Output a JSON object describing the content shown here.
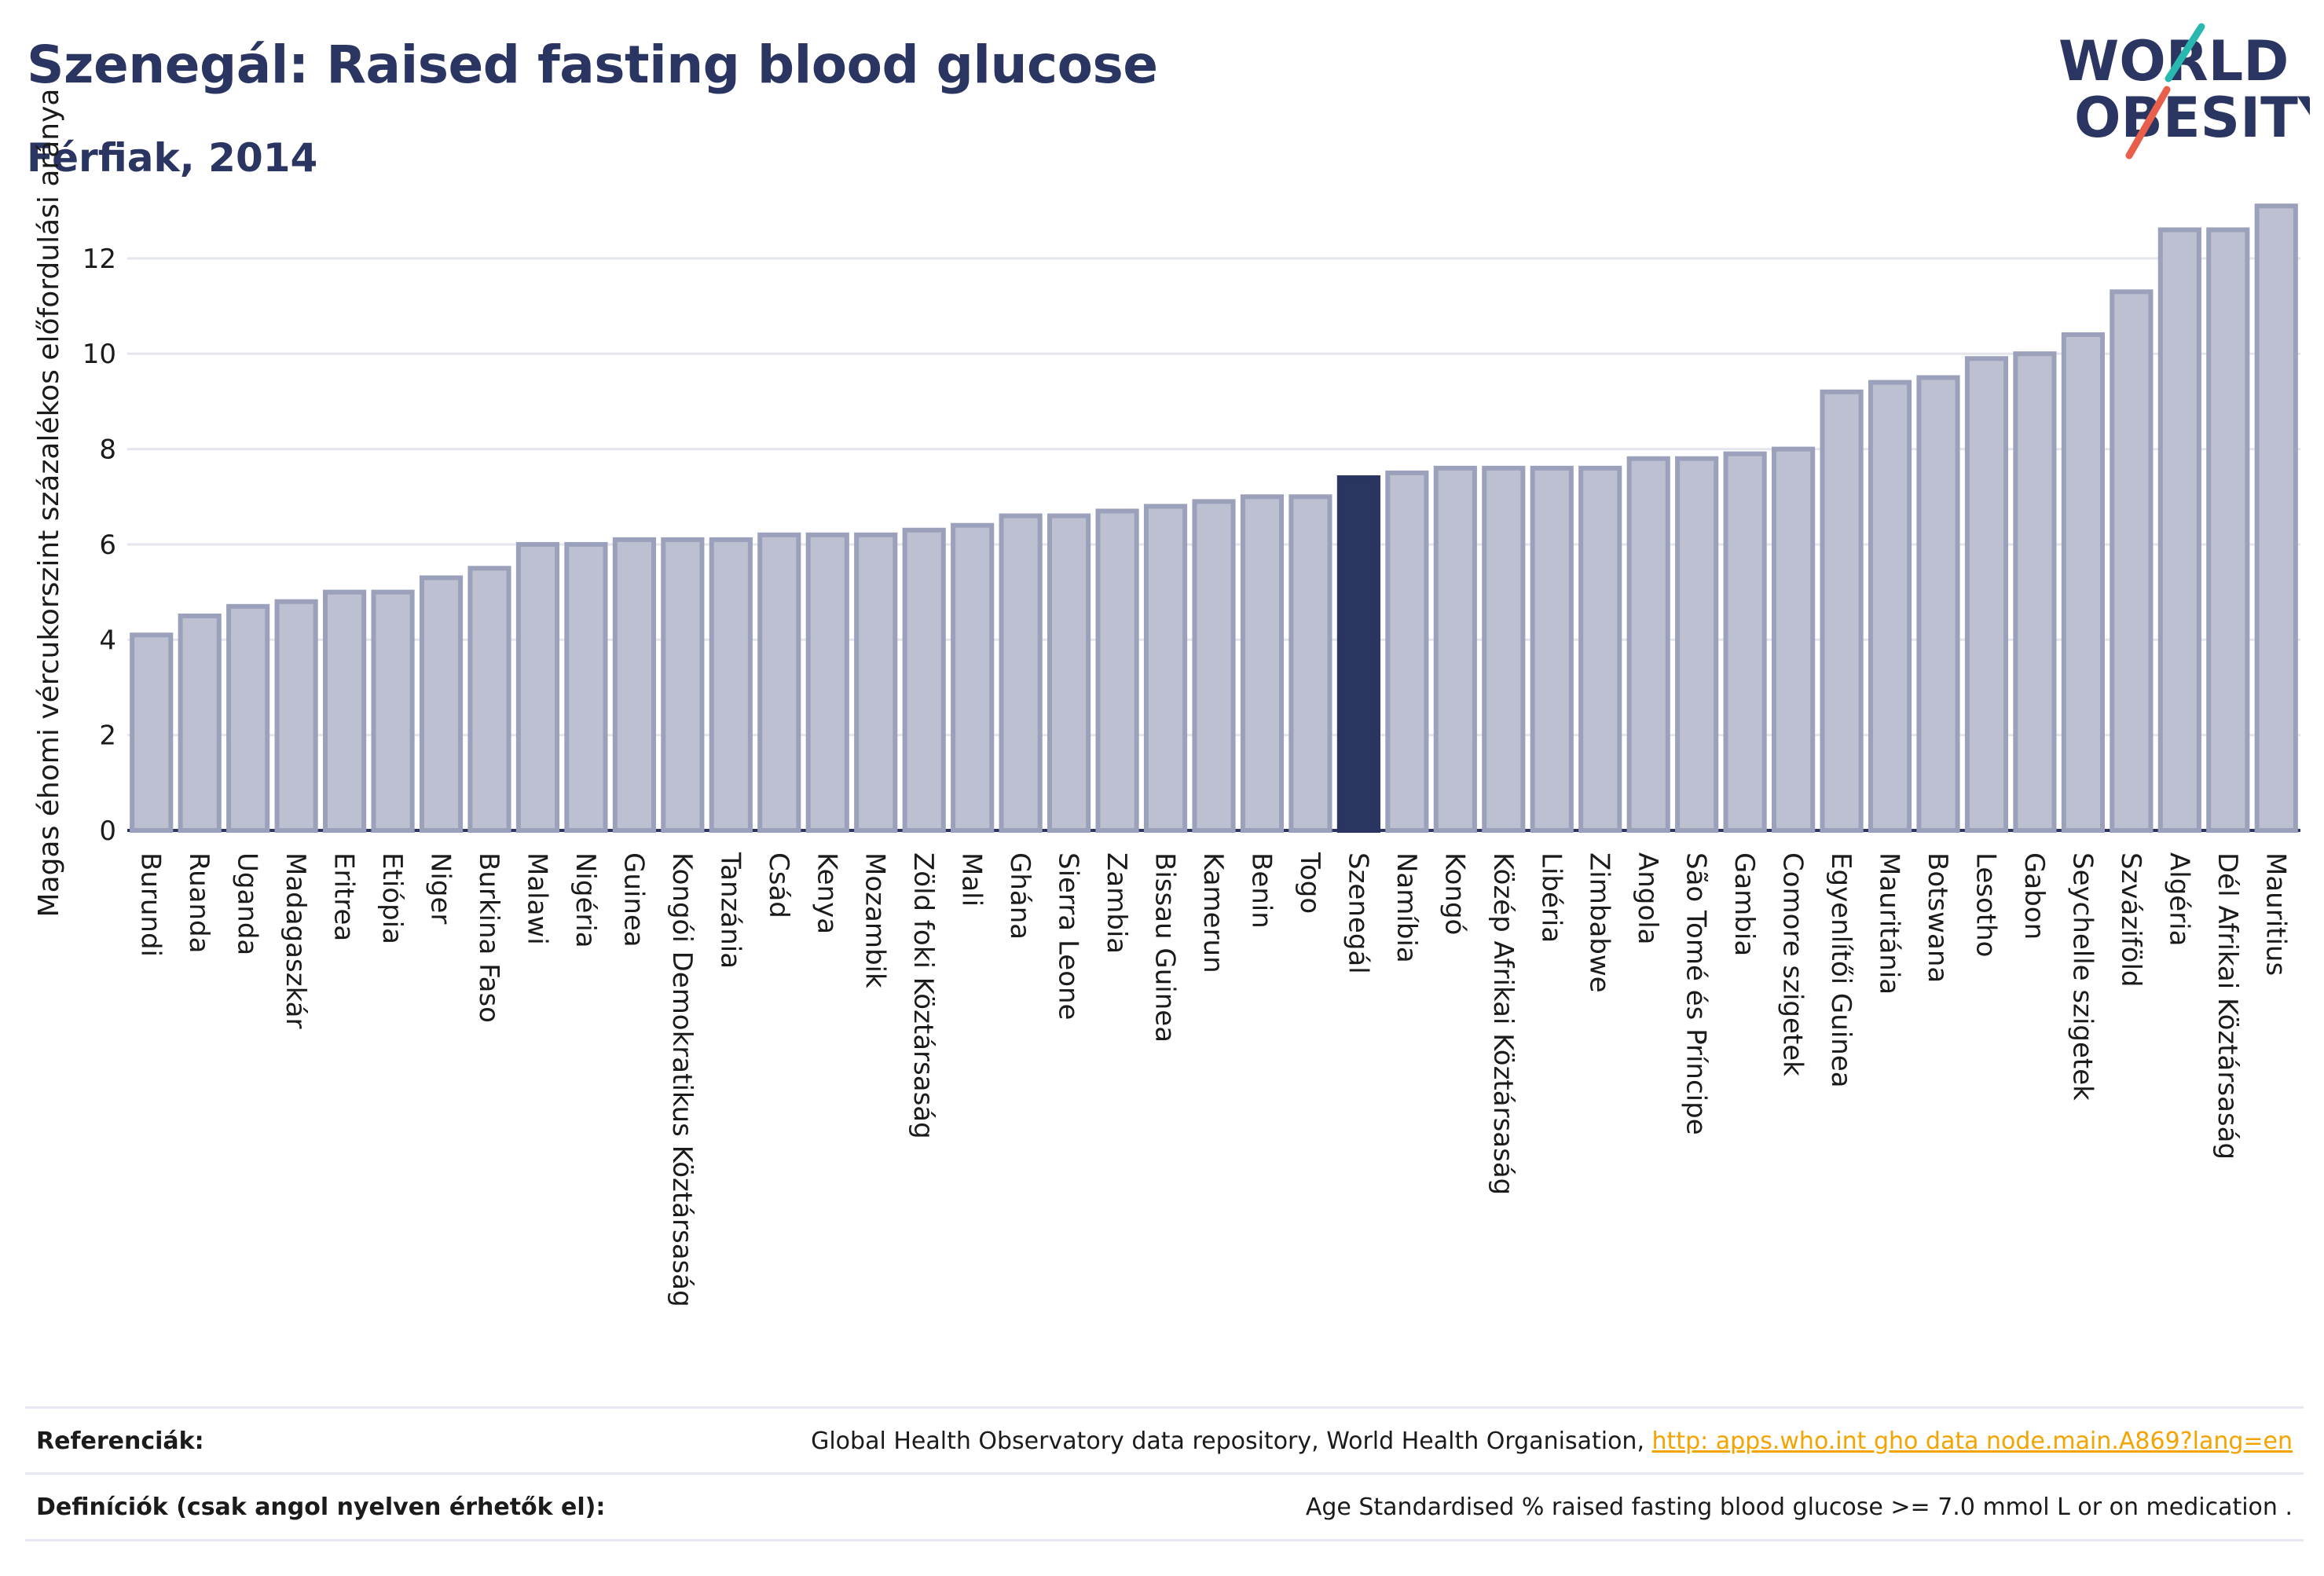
{
  "header": {
    "title": "Szenegál: Raised fasting blood glucose",
    "subtitle": "Férfiak, 2014"
  },
  "logo": {
    "line1": "WORLD",
    "line2": "OBESITY"
  },
  "colors": {
    "bar": "#bcc0d0",
    "bar_edge": "#9ba1bb",
    "highlight": "#2a3561",
    "title": "#2a3561",
    "link": "#f5a300",
    "logo_teal": "#29b8b0",
    "logo_red": "#e8604c"
  },
  "references": {
    "label": "Referenciák:",
    "text": "Global Health Observatory data repository, World Health Organisation,",
    "link": "http:  apps.who.int gho data node.main.A869?lang=en"
  },
  "definitions": {
    "label": "Definíciók (csak angol nyelven érhetők el):",
    "text": "Age Standardised % raised fasting blood glucose  >= 7.0 mmol L or on medication ."
  },
  "chart_data": {
    "type": "bar",
    "title": "Szenegál: Raised fasting blood glucose",
    "subtitle": "Férfiak, 2014",
    "xlabel": "",
    "ylabel": "Magas éhomi vércukorszint százalékos előfordulási aránya",
    "ylim": [
      0,
      13.3
    ],
    "yticks": [
      0,
      2,
      4,
      6,
      8,
      10,
      12
    ],
    "grid": true,
    "highlight": "Szenegál",
    "categories": [
      "Burundi",
      "Ruanda",
      "Uganda",
      "Madagaszkár",
      "Eritrea",
      "Etiópia",
      "Niger",
      "Burkina Faso",
      "Malawi",
      "Nigéria",
      "Guinea",
      "Kongói Demokratikus Köztársaság",
      "Tanzánia",
      "Csád",
      "Kenya",
      "Mozambik",
      "Zöld foki Köztársaság",
      "Mali",
      "Ghána",
      "Sierra Leone",
      "Zambia",
      "Bissau Guinea",
      "Kamerun",
      "Benin",
      "Togo",
      "Szenegál",
      "Namíbia",
      "Kongó",
      "Közép Afrikai Köztársaság",
      "Libéria",
      "Zimbabwe",
      "Angola",
      "São Tomé és Príncipe",
      "Gambia",
      "Comore  szigetek",
      "Egyenlítői Guinea",
      "Mauritánia",
      "Botswana",
      "Lesotho",
      "Gabon",
      "Seychelle  szigetek",
      "Szváziföld",
      "Algéria",
      "Dél Afrikai Köztársaság",
      "Mauritius"
    ],
    "values": [
      4.1,
      4.5,
      4.7,
      4.8,
      5.0,
      5.0,
      5.3,
      5.5,
      6.0,
      6.0,
      6.1,
      6.1,
      6.1,
      6.2,
      6.2,
      6.2,
      6.3,
      6.4,
      6.6,
      6.6,
      6.7,
      6.8,
      6.9,
      7.0,
      7.0,
      7.4,
      7.5,
      7.6,
      7.6,
      7.6,
      7.6,
      7.8,
      7.8,
      7.9,
      8.0,
      9.2,
      9.4,
      9.5,
      9.9,
      10.0,
      10.4,
      11.3,
      12.6,
      12.6,
      13.1
    ]
  }
}
